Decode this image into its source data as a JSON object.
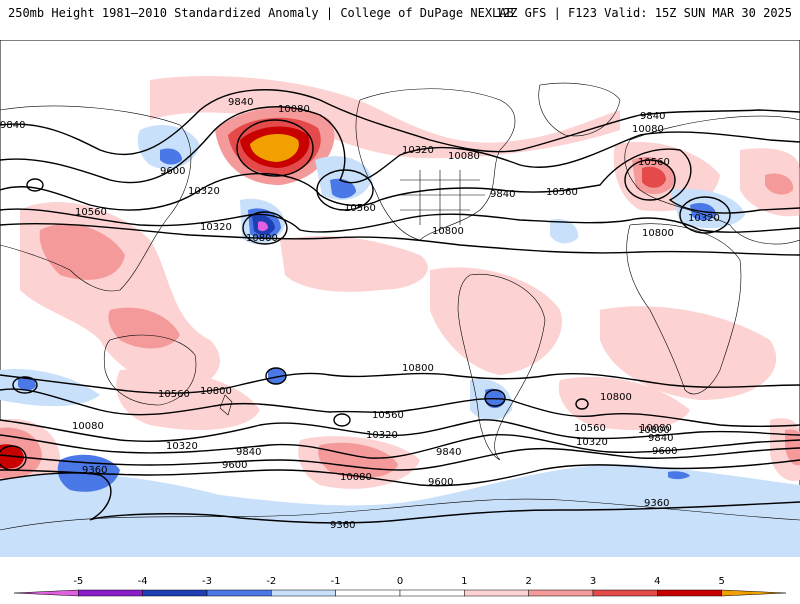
{
  "header": {
    "title_left": "250mb Height 1981–2010 Standardized Anomaly | College of DuPage NEXLAB",
    "title_right": "12Z GFS | F123 Valid: 15Z SUN MAR 30 2025"
  },
  "colors": {
    "neg5": "#e060e0",
    "neg4": "#8a1fc8",
    "neg3": "#1e3fb4",
    "neg2": "#4a78e6",
    "neg1": "#c8e0fa",
    "zero": "#ffffff",
    "pos1": "#fcd2d2",
    "pos2": "#f49a9a",
    "pos3": "#e44a4a",
    "pos4": "#c80000",
    "pos5": "#f2a000",
    "contour": "#000000",
    "land": "#000000"
  },
  "colorbar": {
    "ticks": [
      "-5",
      "-4",
      "-3",
      "-2",
      "-1",
      "0",
      "1",
      "2",
      "3",
      "4",
      "5"
    ]
  },
  "contour_labels": [
    {
      "id": "l1",
      "text": "9840"
    },
    {
      "id": "l2",
      "text": "10080"
    },
    {
      "id": "l3",
      "text": "9840"
    },
    {
      "id": "l4",
      "text": "9600"
    },
    {
      "id": "l5",
      "text": "10320"
    },
    {
      "id": "l6",
      "text": "10560"
    },
    {
      "id": "l7",
      "text": "10800"
    },
    {
      "id": "l8",
      "text": "10560"
    },
    {
      "id": "l9",
      "text": "10320"
    },
    {
      "id": "l10",
      "text": "10080"
    },
    {
      "id": "l11",
      "text": "9840"
    },
    {
      "id": "l12",
      "text": "10560"
    },
    {
      "id": "l13",
      "text": "10320"
    },
    {
      "id": "l14",
      "text": "10800"
    },
    {
      "id": "l15",
      "text": "9840"
    },
    {
      "id": "l16",
      "text": "10080"
    },
    {
      "id": "l17",
      "text": "10560"
    },
    {
      "id": "l18",
      "text": "10320"
    },
    {
      "id": "l19",
      "text": "10800"
    },
    {
      "id": "l20",
      "text": "10800"
    },
    {
      "id": "l21",
      "text": "10560"
    },
    {
      "id": "l22",
      "text": "10800"
    },
    {
      "id": "l23",
      "text": "10080"
    },
    {
      "id": "l24",
      "text": "10320"
    },
    {
      "id": "l25",
      "text": "9840"
    },
    {
      "id": "l26",
      "text": "9600"
    },
    {
      "id": "l27",
      "text": "9360"
    },
    {
      "id": "l28",
      "text": "10800"
    },
    {
      "id": "l29",
      "text": "10560"
    },
    {
      "id": "l30",
      "text": "10320"
    },
    {
      "id": "l31",
      "text": "10080"
    },
    {
      "id": "l32",
      "text": "9840"
    },
    {
      "id": "l33",
      "text": "9600"
    },
    {
      "id": "l34",
      "text": "10800"
    },
    {
      "id": "l35",
      "text": "10560"
    },
    {
      "id": "l36",
      "text": "10320"
    },
    {
      "id": "l37",
      "text": "10080"
    },
    {
      "id": "l38",
      "text": "9840"
    },
    {
      "id": "l39",
      "text": "9600"
    },
    {
      "id": "l40",
      "text": "9360"
    },
    {
      "id": "l41",
      "text": "9360"
    }
  ]
}
